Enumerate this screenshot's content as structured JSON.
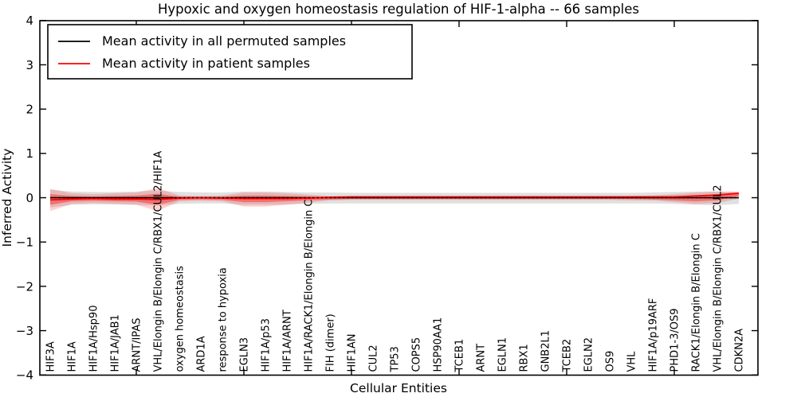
{
  "title": "Hypoxic and oxygen homeostasis regulation of HIF-1-alpha -- 66 samples",
  "axes": {
    "y_label": "Inferred Activity",
    "x_label": "Cellular Entities",
    "y_tick_labels": [
      "4",
      "3",
      "2",
      "1",
      "0",
      "−1",
      "−2",
      "−3",
      "−4"
    ],
    "y_tick_values": [
      4,
      3,
      2,
      1,
      0,
      -1,
      -2,
      -3,
      -4
    ]
  },
  "legend": {
    "entries": [
      {
        "label": "Mean activity in all permuted samples",
        "color": "#000000"
      },
      {
        "label": "Mean activity in patient samples",
        "color": "#ff0000"
      }
    ]
  },
  "chart_data": {
    "type": "line",
    "title": "Hypoxic and oxygen homeostasis regulation of HIF-1-alpha -- 66 samples",
    "xlabel": "Cellular Entities",
    "ylabel": "Inferred Activity",
    "ylim": [
      -4,
      4
    ],
    "grid": false,
    "legend_position": "upper left",
    "categories": [
      "HIF3A",
      "HIF1A",
      "HIF1A/Hsp90",
      "HIF1A/JAB1",
      "ARNT/IPAS",
      "VHL/Elongin B/Elongin C/RBX1/CUL2/HIF1A",
      "oxygen homeostasis",
      "ARD1A",
      "response to hypoxia",
      "EGLN3",
      "HIF1A/p53",
      "HIF1A/ARNT",
      "HIF1A/RACK1/Elongin B/Elongin C",
      "FIH (dimer)",
      "HIF1AN",
      "CUL2",
      "TP53",
      "COPS5",
      "HSP90AA1",
      "TCEB1",
      "ARNT",
      "EGLN1",
      "RBX1",
      "GNB2L1",
      "TCEB2",
      "EGLN2",
      "OS9",
      "VHL",
      "HIF1A/p19ARF",
      "PHD1-3/OS9",
      "RACK1/Elongin B/Elongin C",
      "VHL/Elongin B/Elongin C/RBX1/CUL2",
      "CDKN2A"
    ],
    "x_major_tick_indices": [
      4,
      9,
      14,
      19,
      24,
      29
    ],
    "series": [
      {
        "name": "Mean activity in all permuted samples",
        "color": "#000000",
        "style": "solid-plus-dotted",
        "values": [
          0,
          0,
          0,
          0,
          0,
          0,
          0,
          0,
          0,
          0,
          0,
          0,
          0,
          0,
          0,
          0,
          0,
          0,
          0,
          0,
          0,
          0,
          0,
          0,
          0,
          0,
          0,
          0,
          0,
          0,
          0,
          0,
          0
        ]
      },
      {
        "name": "Mean activity in patient samples",
        "color": "#ff0000",
        "style": "solid",
        "values": [
          -0.05,
          -0.03,
          -0.02,
          -0.03,
          -0.03,
          -0.04,
          -0.01,
          0.0,
          -0.01,
          -0.02,
          -0.02,
          -0.02,
          -0.01,
          0.01,
          0.02,
          0.02,
          0.02,
          0.02,
          0.02,
          0.02,
          0.02,
          0.02,
          0.02,
          0.02,
          0.02,
          0.02,
          0.02,
          0.02,
          0.02,
          0.02,
          0.04,
          0.06,
          0.1
        ]
      }
    ],
    "bands": [
      {
        "name": "permuted-std-band",
        "color": "#000000",
        "opacity": 0.12,
        "upper": [
          0.18,
          0.14,
          0.13,
          0.13,
          0.14,
          0.16,
          0.13,
          0.12,
          0.12,
          0.14,
          0.14,
          0.13,
          0.12,
          0.12,
          0.11,
          0.11,
          0.11,
          0.11,
          0.11,
          0.11,
          0.11,
          0.11,
          0.11,
          0.11,
          0.11,
          0.11,
          0.11,
          0.11,
          0.12,
          0.13,
          0.14,
          0.14,
          0.12
        ],
        "lower": [
          -0.22,
          -0.16,
          -0.15,
          -0.15,
          -0.16,
          -0.18,
          -0.14,
          -0.13,
          -0.13,
          -0.16,
          -0.16,
          -0.15,
          -0.14,
          -0.13,
          -0.13,
          -0.13,
          -0.13,
          -0.13,
          -0.13,
          -0.13,
          -0.13,
          -0.13,
          -0.13,
          -0.13,
          -0.13,
          -0.13,
          -0.13,
          -0.13,
          -0.13,
          -0.14,
          -0.16,
          -0.17,
          -0.14
        ]
      },
      {
        "name": "patient-std-band-outer",
        "color": "#ff0000",
        "opacity": 0.18,
        "upper": [
          0.2,
          0.1,
          0.08,
          0.1,
          0.12,
          0.22,
          0.05,
          0.04,
          0.05,
          0.12,
          0.12,
          0.1,
          0.07,
          0.04,
          0.03,
          0.03,
          0.03,
          0.03,
          0.03,
          0.03,
          0.03,
          0.03,
          0.03,
          0.03,
          0.03,
          0.03,
          0.03,
          0.04,
          0.05,
          0.08,
          0.12,
          0.14,
          0.14
        ],
        "lower": [
          -0.3,
          -0.14,
          -0.12,
          -0.14,
          -0.16,
          -0.3,
          -0.08,
          -0.07,
          -0.08,
          -0.2,
          -0.2,
          -0.16,
          -0.11,
          -0.06,
          -0.05,
          -0.05,
          -0.05,
          -0.05,
          -0.05,
          -0.05,
          -0.05,
          -0.05,
          -0.05,
          -0.05,
          -0.05,
          -0.05,
          -0.05,
          -0.06,
          -0.06,
          -0.1,
          -0.14,
          -0.12,
          -0.02
        ]
      },
      {
        "name": "patient-std-band-inner",
        "color": "#ff0000",
        "opacity": 0.38,
        "upper": [
          0.08,
          0.04,
          0.03,
          0.04,
          0.05,
          0.09,
          0.02,
          0.02,
          0.02,
          0.05,
          0.05,
          0.04,
          0.03,
          0.02,
          0.01,
          0.01,
          0.01,
          0.01,
          0.01,
          0.01,
          0.01,
          0.01,
          0.01,
          0.01,
          0.01,
          0.01,
          0.01,
          0.02,
          0.02,
          0.03,
          0.05,
          0.08,
          0.12
        ],
        "lower": [
          -0.16,
          -0.08,
          -0.07,
          -0.08,
          -0.09,
          -0.16,
          -0.05,
          -0.04,
          -0.05,
          -0.1,
          -0.1,
          -0.08,
          -0.06,
          -0.04,
          -0.03,
          -0.03,
          -0.03,
          -0.03,
          -0.03,
          -0.03,
          -0.03,
          -0.03,
          -0.03,
          -0.03,
          -0.03,
          -0.03,
          -0.03,
          -0.03,
          -0.04,
          -0.06,
          -0.08,
          -0.06,
          0.04
        ]
      }
    ]
  }
}
